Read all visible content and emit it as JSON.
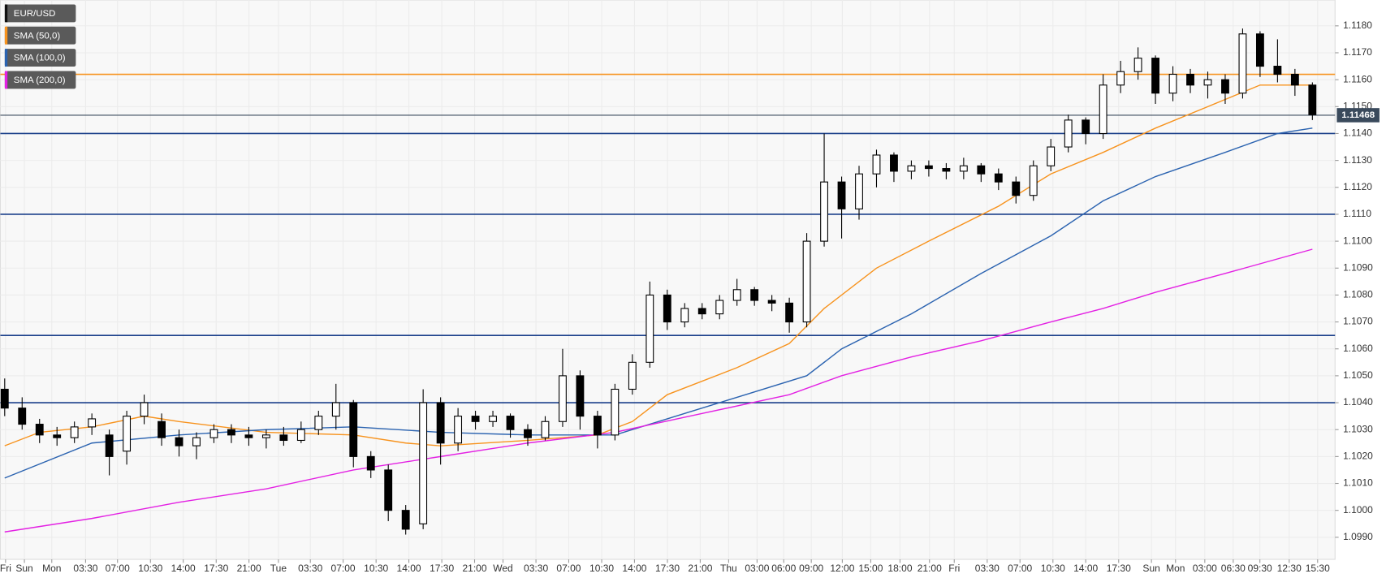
{
  "chart_data": {
    "type": "candlestick",
    "series": [
      {
        "name": "EUR/USD",
        "color": "#000000",
        "open": [
          1.1045,
          1.1038,
          1.1032,
          1.1028,
          1.1027,
          1.1031,
          1.1028,
          1.1022,
          1.1035,
          1.1033,
          1.1027,
          1.1024,
          1.1027,
          1.103,
          1.1028,
          1.1027,
          1.1028,
          1.1026,
          1.103,
          1.1035,
          1.104,
          1.102,
          1.1015,
          1.1,
          1.0995,
          1.104,
          1.1025,
          1.1035,
          1.1033,
          1.1035,
          1.103,
          1.1027,
          1.1033,
          1.105,
          1.1035,
          1.1028,
          1.1045,
          1.1055,
          1.108,
          1.107,
          1.1075,
          1.1073,
          1.1078,
          1.1082,
          1.1078,
          1.1077,
          1.107,
          1.11,
          1.1122,
          1.1112,
          1.1125,
          1.1132,
          1.1126,
          1.1128,
          1.1127,
          1.1126,
          1.1128,
          1.1125,
          1.1122,
          1.1117,
          1.1128,
          1.1135,
          1.1145,
          1.114,
          1.1158,
          1.1163,
          1.1168,
          1.1155,
          1.1162,
          1.1158,
          1.116,
          1.1155,
          1.1177,
          1.1165,
          1.1162,
          1.1158
        ],
        "high": [
          1.1049,
          1.1042,
          1.1034,
          1.1031,
          1.1033,
          1.1036,
          1.103,
          1.1037,
          1.1043,
          1.1036,
          1.103,
          1.1029,
          1.1032,
          1.1032,
          1.1031,
          1.103,
          1.1031,
          1.1033,
          1.1037,
          1.1047,
          1.1041,
          1.1022,
          1.1017,
          1.1002,
          1.1045,
          1.1042,
          1.1038,
          1.1037,
          1.1037,
          1.1036,
          1.1032,
          1.1035,
          1.106,
          1.1052,
          1.1037,
          1.1047,
          1.1058,
          1.1085,
          1.1082,
          1.1077,
          1.1077,
          1.108,
          1.1086,
          1.1083,
          1.108,
          1.1079,
          1.1103,
          1.114,
          1.1124,
          1.1128,
          1.1134,
          1.1133,
          1.113,
          1.113,
          1.1129,
          1.1131,
          1.1129,
          1.1127,
          1.1124,
          1.113,
          1.1138,
          1.1147,
          1.1146,
          1.1162,
          1.1167,
          1.1172,
          1.1169,
          1.1165,
          1.1164,
          1.1163,
          1.1162,
          1.1179,
          1.1178,
          1.1175,
          1.1164,
          1.1159
        ],
        "low": [
          1.1035,
          1.103,
          1.1025,
          1.1024,
          1.1025,
          1.1028,
          1.1013,
          1.1017,
          1.1032,
          1.1024,
          1.102,
          1.1019,
          1.1025,
          1.1025,
          1.1024,
          1.1023,
          1.1024,
          1.1025,
          1.1028,
          1.103,
          1.1016,
          1.1012,
          1.0996,
          1.0991,
          1.0993,
          1.1017,
          1.1022,
          1.103,
          1.1031,
          1.1027,
          1.1024,
          1.1026,
          1.1031,
          1.103,
          1.1023,
          1.1026,
          1.1043,
          1.1053,
          1.1067,
          1.1068,
          1.1071,
          1.1071,
          1.1076,
          1.1076,
          1.1074,
          1.1066,
          1.1068,
          1.1098,
          1.1101,
          1.1108,
          1.112,
          1.1122,
          1.1123,
          1.1124,
          1.1123,
          1.1123,
          1.1122,
          1.1119,
          1.1114,
          1.1115,
          1.1126,
          1.1133,
          1.1136,
          1.1138,
          1.1155,
          1.116,
          1.1151,
          1.1152,
          1.1155,
          1.1153,
          1.1151,
          1.1153,
          1.1161,
          1.1159,
          1.1154,
          1.1145
        ],
        "close": [
          1.1038,
          1.1032,
          1.1028,
          1.1027,
          1.1031,
          1.1034,
          1.102,
          1.1035,
          1.104,
          1.1027,
          1.1024,
          1.1027,
          1.103,
          1.1028,
          1.1027,
          1.1028,
          1.1026,
          1.103,
          1.1035,
          1.104,
          1.102,
          1.1015,
          1.1,
          1.0993,
          1.104,
          1.1025,
          1.1035,
          1.1033,
          1.1035,
          1.103,
          1.1027,
          1.1033,
          1.105,
          1.1035,
          1.1028,
          1.1045,
          1.1055,
          1.108,
          1.107,
          1.1075,
          1.1073,
          1.1078,
          1.1082,
          1.1078,
          1.1077,
          1.107,
          1.11,
          1.1122,
          1.1112,
          1.1125,
          1.1132,
          1.1126,
          1.1128,
          1.1127,
          1.1126,
          1.1128,
          1.1125,
          1.1122,
          1.1117,
          1.1128,
          1.1135,
          1.1145,
          1.114,
          1.1158,
          1.1163,
          1.1168,
          1.1155,
          1.1162,
          1.1158,
          1.116,
          1.1155,
          1.1177,
          1.1165,
          1.1162,
          1.1158,
          1.1147
        ]
      },
      {
        "name": "SMA (50,0)",
        "color": "#f7931e",
        "x": [
          0,
          2,
          5,
          8,
          10,
          15,
          20,
          23,
          25,
          30,
          34,
          36,
          38,
          42,
          45,
          47,
          50,
          53,
          57,
          60,
          63,
          66,
          69,
          72,
          75
        ],
        "values": [
          1.1024,
          1.1029,
          1.1031,
          1.1035,
          1.1033,
          1.1029,
          1.1028,
          1.1025,
          1.1024,
          1.1026,
          1.1028,
          1.1033,
          1.1043,
          1.1053,
          1.1062,
          1.1075,
          1.109,
          1.11,
          1.1113,
          1.1125,
          1.1133,
          1.1142,
          1.115,
          1.1158,
          1.1158
        ]
      },
      {
        "name": "SMA (100,0)",
        "color": "#2b63b0",
        "x": [
          0,
          5,
          10,
          15,
          20,
          25,
          30,
          35,
          38,
          42,
          46,
          48,
          52,
          56,
          60,
          63,
          66,
          70,
          73,
          75
        ],
        "values": [
          1.1012,
          1.1025,
          1.1028,
          1.103,
          1.1031,
          1.1029,
          1.1028,
          1.1028,
          1.1034,
          1.1042,
          1.105,
          1.106,
          1.1073,
          1.1088,
          1.1102,
          1.1115,
          1.1124,
          1.1133,
          1.114,
          1.1142
        ]
      },
      {
        "name": "SMA (200,0)",
        "color": "#e321e3",
        "x": [
          0,
          5,
          10,
          15,
          20,
          25,
          30,
          35,
          40,
          45,
          48,
          52,
          56,
          60,
          63,
          66,
          70,
          75
        ],
        "values": [
          1.0992,
          1.0997,
          1.1003,
          1.1008,
          1.1015,
          1.102,
          1.1025,
          1.1029,
          1.1036,
          1.1043,
          1.105,
          1.1057,
          1.1063,
          1.107,
          1.1075,
          1.1081,
          1.1088,
          1.1097
        ]
      }
    ],
    "hlines": [
      {
        "value": 1.1162,
        "color": "#f7931e"
      },
      {
        "value": 1.114,
        "color": "#1a3f8a"
      },
      {
        "value": 1.111,
        "color": "#1a3f8a"
      },
      {
        "value": 1.1065,
        "color": "#1a3f8a"
      },
      {
        "value": 1.104,
        "color": "#1a3f8a"
      }
    ],
    "last_price": 1.11468,
    "last_price_color": "#3a4a5c",
    "xlim": [
      -0.25,
      76.3
    ],
    "xticks": [
      {
        "value": 0.05,
        "label": "Fri"
      },
      {
        "value": 1.13,
        "label": "Sun"
      },
      {
        "value": 2.7,
        "label": "Mon"
      },
      {
        "value": 4.64,
        "label": "03:30"
      },
      {
        "value": 6.47,
        "label": "07:00"
      },
      {
        "value": 8.36,
        "label": "10:30"
      },
      {
        "value": 10.24,
        "label": "14:00"
      },
      {
        "value": 12.13,
        "label": "17:30"
      },
      {
        "value": 14.01,
        "label": "21:00"
      },
      {
        "value": 15.7,
        "label": "Tue"
      },
      {
        "value": 17.53,
        "label": "03:30"
      },
      {
        "value": 19.41,
        "label": "07:00"
      },
      {
        "value": 21.3,
        "label": "10:30"
      },
      {
        "value": 23.18,
        "label": "14:00"
      },
      {
        "value": 25.07,
        "label": "17:30"
      },
      {
        "value": 26.95,
        "label": "21:00"
      },
      {
        "value": 28.58,
        "label": "Wed"
      },
      {
        "value": 30.47,
        "label": "03:30"
      },
      {
        "value": 32.35,
        "label": "07:00"
      },
      {
        "value": 34.24,
        "label": "10:30"
      },
      {
        "value": 36.12,
        "label": "14:00"
      },
      {
        "value": 38.01,
        "label": "17:30"
      },
      {
        "value": 39.89,
        "label": "21:00"
      },
      {
        "value": 41.52,
        "label": "Thu"
      },
      {
        "value": 43.15,
        "label": "03:00"
      },
      {
        "value": 44.68,
        "label": "06:00"
      },
      {
        "value": 46.26,
        "label": "09:00"
      },
      {
        "value": 48.04,
        "label": "12:00"
      },
      {
        "value": 49.67,
        "label": "15:00"
      },
      {
        "value": 51.35,
        "label": "18:00"
      },
      {
        "value": 53.04,
        "label": "21:00"
      },
      {
        "value": 54.46,
        "label": "Fri"
      },
      {
        "value": 56.35,
        "label": "03:30"
      },
      {
        "value": 58.23,
        "label": "07:00"
      },
      {
        "value": 60.12,
        "label": "10:30"
      },
      {
        "value": 62.0,
        "label": "14:00"
      },
      {
        "value": 63.89,
        "label": "17:30"
      },
      {
        "value": 65.77,
        "label": "Sun"
      },
      {
        "value": 67.15,
        "label": "Mon"
      },
      {
        "value": 68.83,
        "label": "03:00"
      },
      {
        "value": 70.46,
        "label": "06:30"
      },
      {
        "value": 71.99,
        "label": "09:30"
      },
      {
        "value": 73.67,
        "label": "12:30"
      },
      {
        "value": 75.3,
        "label": "15:30"
      }
    ],
    "ylim": [
      1.09818,
      1.11896
    ],
    "yticks": [
      {
        "value": 1.099,
        "label": "1.0990"
      },
      {
        "value": 1.1,
        "label": "1.1000"
      },
      {
        "value": 1.101,
        "label": "1.1010"
      },
      {
        "value": 1.102,
        "label": "1.1020"
      },
      {
        "value": 1.103,
        "label": "1.1030"
      },
      {
        "value": 1.104,
        "label": "1.1040"
      },
      {
        "value": 1.105,
        "label": "1.1050"
      },
      {
        "value": 1.106,
        "label": "1.1060"
      },
      {
        "value": 1.107,
        "label": "1.1070"
      },
      {
        "value": 1.108,
        "label": "1.1080"
      },
      {
        "value": 1.109,
        "label": "1.1090"
      },
      {
        "value": 1.11,
        "label": "1.1100"
      },
      {
        "value": 1.111,
        "label": "1.1110"
      },
      {
        "value": 1.112,
        "label": "1.1120"
      },
      {
        "value": 1.113,
        "label": "1.1130"
      },
      {
        "value": 1.114,
        "label": "1.1140"
      },
      {
        "value": 1.115,
        "label": "1.1150"
      },
      {
        "value": 1.116,
        "label": "1.1160"
      },
      {
        "value": 1.117,
        "label": "1.1170"
      },
      {
        "value": 1.118,
        "label": "1.1180"
      }
    ],
    "grid": true
  }
}
